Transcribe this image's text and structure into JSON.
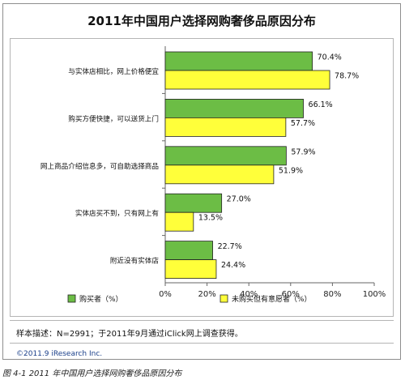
{
  "chart_data": {
    "type": "bar",
    "orientation": "horizontal",
    "title": "2011年中国用户选择网购奢侈品原因分布",
    "categories": [
      "与实体店相比，网上价格便宜",
      "购买方便快捷，可以送货上门",
      "网上商品介绍信息多，可自助选择商品",
      "实体店买不到，只有网上有",
      "附近没有实体店"
    ],
    "series": [
      {
        "name": "购买者（%）",
        "color": "#6cbd45",
        "values": [
          70.4,
          66.1,
          57.9,
          27.0,
          22.7
        ]
      },
      {
        "name": "未购买但有意愿者（%）",
        "color": "#ffff3a",
        "values": [
          78.7,
          57.7,
          51.9,
          13.5,
          24.4
        ]
      }
    ],
    "value_labels": [
      [
        "70.4%",
        "66.1%",
        "57.9%",
        "27.0%",
        "22.7%"
      ],
      [
        "78.7%",
        "57.7%",
        "51.9%",
        "13.5%",
        "24.4%"
      ]
    ],
    "xlim": [
      0,
      100
    ],
    "xticks": [
      "0%",
      "20%",
      "40%",
      "60%",
      "80%",
      "100%"
    ],
    "legend_position": "bottom",
    "grid": false
  },
  "footer": {
    "note": "样本描述：N=2991；于2011年9月通过iClick网上调查获得。",
    "copyright": "©2011.9 iResearch Inc."
  },
  "caption": "图 4-1 2011 年中国用户选择网购奢侈品原因分布"
}
